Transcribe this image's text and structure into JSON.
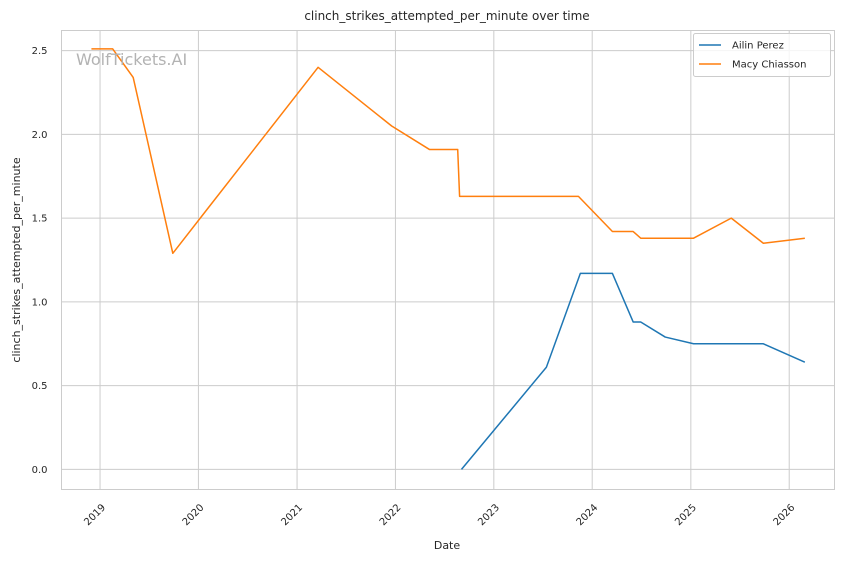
{
  "chart_data": {
    "type": "line",
    "title": "clinch_strikes_attempted_per_minute over time",
    "xlabel": "Date",
    "ylabel": "clinch_strikes_attempted_per_minute",
    "watermark": "WolfTickets.AI",
    "xlim": [
      "2018-08-11",
      "2026-06-18"
    ],
    "ylim": [
      -0.12,
      2.62
    ],
    "x_ticks": [
      {
        "date": "2019-01-01",
        "label": "2019"
      },
      {
        "date": "2020-01-01",
        "label": "2020"
      },
      {
        "date": "2021-01-01",
        "label": "2021"
      },
      {
        "date": "2022-01-01",
        "label": "2022"
      },
      {
        "date": "2023-01-01",
        "label": "2023"
      },
      {
        "date": "2024-01-01",
        "label": "2024"
      },
      {
        "date": "2025-01-01",
        "label": "2025"
      },
      {
        "date": "2026-01-01",
        "label": "2026"
      }
    ],
    "y_ticks": [
      {
        "value": 0.0,
        "label": "0.0"
      },
      {
        "value": 0.5,
        "label": "0.5"
      },
      {
        "value": 1.0,
        "label": "1.0"
      },
      {
        "value": 1.5,
        "label": "1.5"
      },
      {
        "value": 2.0,
        "label": "2.0"
      },
      {
        "value": 2.5,
        "label": "2.5"
      }
    ],
    "grid": true,
    "legend_position": "top-right",
    "series": [
      {
        "name": "Ailin Perez",
        "color": "#1f77b4",
        "points": [
          {
            "x": "2022-09-03",
            "y": 0.0
          },
          {
            "x": "2023-07-15",
            "y": 0.61
          },
          {
            "x": "2023-11-18",
            "y": 1.17
          },
          {
            "x": "2024-03-16",
            "y": 1.17
          },
          {
            "x": "2024-06-01",
            "y": 0.88
          },
          {
            "x": "2024-06-29",
            "y": 0.88
          },
          {
            "x": "2024-09-28",
            "y": 0.79
          },
          {
            "x": "2025-01-11",
            "y": 0.75
          },
          {
            "x": "2025-09-27",
            "y": 0.75
          },
          {
            "x": "2026-02-28",
            "y": 0.64
          }
        ]
      },
      {
        "name": "Macy Chiasson",
        "color": "#ff7f0e",
        "points": [
          {
            "x": "2018-11-30",
            "y": 2.51
          },
          {
            "x": "2019-02-17",
            "y": 2.51
          },
          {
            "x": "2019-05-04",
            "y": 2.34
          },
          {
            "x": "2019-09-28",
            "y": 1.29
          },
          {
            "x": "2020-02-01",
            "y": 1.55
          },
          {
            "x": "2021-03-20",
            "y": 2.4
          },
          {
            "x": "2021-12-18",
            "y": 2.05
          },
          {
            "x": "2022-05-07",
            "y": 1.91
          },
          {
            "x": "2022-08-20",
            "y": 1.91
          },
          {
            "x": "2022-08-27",
            "y": 1.63
          },
          {
            "x": "2023-11-11",
            "y": 1.63
          },
          {
            "x": "2024-03-16",
            "y": 1.42
          },
          {
            "x": "2024-06-01",
            "y": 1.42
          },
          {
            "x": "2024-06-29",
            "y": 1.38
          },
          {
            "x": "2025-01-11",
            "y": 1.38
          },
          {
            "x": "2025-05-31",
            "y": 1.5
          },
          {
            "x": "2025-09-27",
            "y": 1.35
          },
          {
            "x": "2026-02-28",
            "y": 1.38
          }
        ]
      }
    ]
  }
}
